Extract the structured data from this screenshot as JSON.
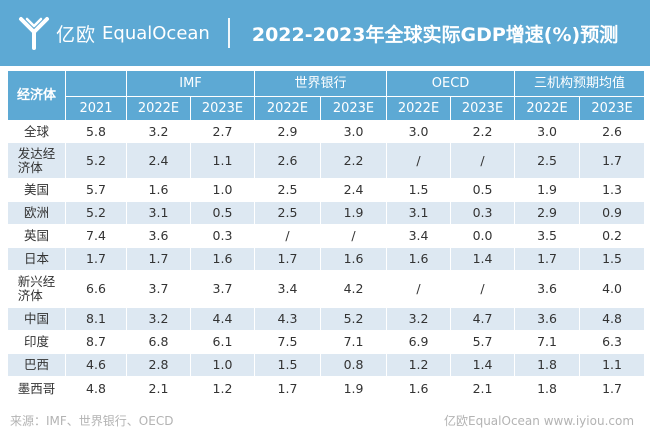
{
  "header": {
    "logo_cn": "亿欧",
    "logo_en": "EqualOcean",
    "title": "2022-2023年全球实际GDP增速(%)预测"
  },
  "table": {
    "row_header": "经济体",
    "groups": [
      "IMF",
      "世界银行",
      "OECD",
      "三机构预期均值"
    ],
    "year_columns": [
      "2021",
      "2022E",
      "2023E",
      "2022E",
      "2023E",
      "2022E",
      "2023E",
      "2022E",
      "2023E"
    ],
    "rows": [
      {
        "name": "全球",
        "values": [
          "5.8",
          "3.2",
          "2.7",
          "2.9",
          "3.0",
          "3.0",
          "2.2",
          "3.0",
          "2.6"
        ]
      },
      {
        "name": "发达经济体",
        "values": [
          "5.2",
          "2.4",
          "1.1",
          "2.6",
          "2.2",
          "/",
          "/",
          "2.5",
          "1.7"
        ]
      },
      {
        "name": "美国",
        "values": [
          "5.7",
          "1.6",
          "1.0",
          "2.5",
          "2.4",
          "1.5",
          "0.5",
          "1.9",
          "1.3"
        ]
      },
      {
        "name": "欧洲",
        "values": [
          "5.2",
          "3.1",
          "0.5",
          "2.5",
          "1.9",
          "3.1",
          "0.3",
          "2.9",
          "0.9"
        ]
      },
      {
        "name": "英国",
        "values": [
          "7.4",
          "3.6",
          "0.3",
          "/",
          "/",
          "3.4",
          "0.0",
          "3.5",
          "0.2"
        ]
      },
      {
        "name": "日本",
        "values": [
          "1.7",
          "1.7",
          "1.6",
          "1.7",
          "1.6",
          "1.6",
          "1.4",
          "1.7",
          "1.5"
        ]
      },
      {
        "name": "新兴经济体",
        "values": [
          "6.6",
          "3.7",
          "3.7",
          "3.4",
          "4.2",
          "/",
          "/",
          "3.6",
          "4.0"
        ]
      },
      {
        "name": "中国",
        "values": [
          "8.1",
          "3.2",
          "4.4",
          "4.3",
          "5.2",
          "3.2",
          "4.7",
          "3.6",
          "4.8"
        ]
      },
      {
        "name": "印度",
        "values": [
          "8.7",
          "6.8",
          "6.1",
          "7.5",
          "7.1",
          "6.9",
          "5.7",
          "7.1",
          "6.3"
        ]
      },
      {
        "name": "巴西",
        "values": [
          "4.6",
          "2.8",
          "1.0",
          "1.5",
          "0.8",
          "1.2",
          "1.4",
          "1.8",
          "1.1"
        ]
      },
      {
        "name": "墨西哥",
        "values": [
          "4.8",
          "2.1",
          "1.2",
          "1.7",
          "1.9",
          "1.6",
          "2.1",
          "1.8",
          "1.7"
        ]
      }
    ]
  },
  "footer": {
    "source": "来源：IMF、世界银行、OECD",
    "brand": "亿欧EqualOcean  www.iyiou.com"
  },
  "colors": {
    "accent": "#5da9d4",
    "row_stripe": "#dde8f2",
    "text": "#333333",
    "footer_text": "#b3b3b3"
  }
}
